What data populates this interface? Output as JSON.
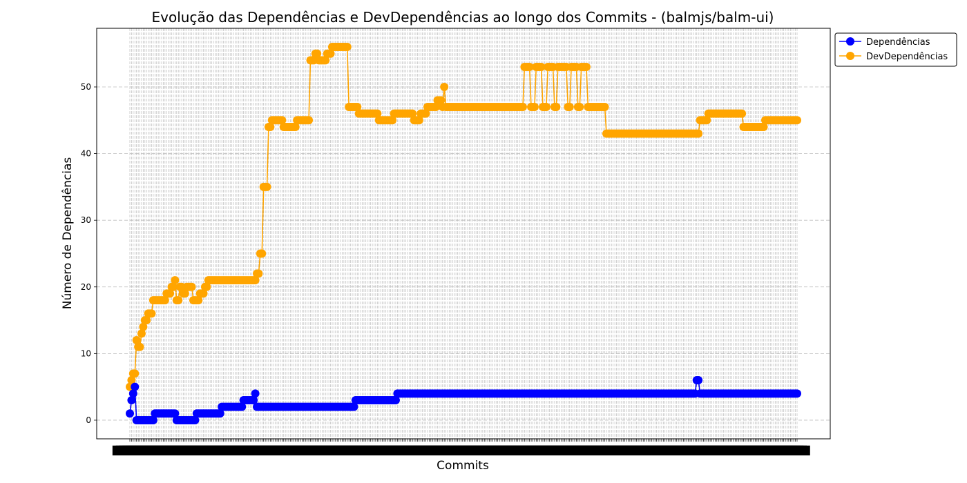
{
  "chart_data": {
    "type": "line",
    "title": "Evolução das Dependências e DevDependências ao longo dos Commits - (balmjs/balm-ui)",
    "xlabel": "Commits",
    "ylabel": "Número de Dependências",
    "ylim": [
      -2.8,
      58.8
    ],
    "yticks": [
      0,
      10,
      20,
      30,
      40,
      50
    ],
    "xtick_labels": "overlapping commit hash labels (illegible)",
    "grid": true,
    "legend_position": "top-right (outside plot)",
    "n_commits": 400,
    "series": [
      {
        "name": "Dependências",
        "color": "#0000ff",
        "marker": "circle",
        "segments": [
          [
            0,
            1
          ],
          [
            1,
            3
          ],
          [
            2,
            4
          ],
          [
            3,
            5
          ],
          [
            4,
            0
          ],
          [
            15,
            1
          ],
          [
            28,
            0
          ],
          [
            35,
            0
          ],
          [
            40,
            1
          ],
          [
            50,
            1
          ],
          [
            55,
            2
          ],
          [
            68,
            3
          ],
          [
            75,
            4
          ],
          [
            76,
            2
          ],
          [
            85,
            2
          ],
          [
            95,
            2
          ],
          [
            105,
            2
          ],
          [
            115,
            2
          ],
          [
            125,
            2
          ],
          [
            135,
            3
          ],
          [
            145,
            3
          ],
          [
            155,
            3
          ],
          [
            160,
            4
          ],
          [
            200,
            4
          ],
          [
            250,
            4
          ],
          [
            300,
            4
          ],
          [
            339,
            6
          ],
          [
            340,
            6
          ],
          [
            341,
            4
          ],
          [
            399,
            4
          ]
        ]
      },
      {
        "name": "DevDependências",
        "color": "#ffa500",
        "marker": "circle",
        "segments": [
          [
            0,
            5
          ],
          [
            1,
            6
          ],
          [
            2,
            7
          ],
          [
            3,
            7
          ],
          [
            4,
            12
          ],
          [
            5,
            11
          ],
          [
            7,
            13
          ],
          [
            8,
            14
          ],
          [
            9,
            15
          ],
          [
            11,
            16
          ],
          [
            14,
            18
          ],
          [
            22,
            19
          ],
          [
            25,
            20
          ],
          [
            27,
            21
          ],
          [
            28,
            18
          ],
          [
            30,
            20
          ],
          [
            32,
            19
          ],
          [
            34,
            20
          ],
          [
            38,
            18
          ],
          [
            42,
            19
          ],
          [
            45,
            20
          ],
          [
            47,
            21
          ],
          [
            60,
            21
          ],
          [
            70,
            21
          ],
          [
            76,
            22
          ],
          [
            78,
            25
          ],
          [
            80,
            35
          ],
          [
            83,
            44
          ],
          [
            85,
            45
          ],
          [
            92,
            44
          ],
          [
            100,
            45
          ],
          [
            108,
            54
          ],
          [
            111,
            55
          ],
          [
            113,
            54
          ],
          [
            118,
            55
          ],
          [
            121,
            56
          ],
          [
            131,
            47
          ],
          [
            137,
            46
          ],
          [
            149,
            45
          ],
          [
            158,
            46
          ],
          [
            170,
            45
          ],
          [
            174,
            46
          ],
          [
            178,
            47
          ],
          [
            184,
            48
          ],
          [
            187,
            47
          ],
          [
            188,
            50
          ],
          [
            189,
            47
          ],
          [
            200,
            47
          ],
          [
            225,
            47
          ],
          [
            235,
            47
          ],
          [
            236,
            53
          ],
          [
            240,
            47
          ],
          [
            243,
            53
          ],
          [
            247,
            47
          ],
          [
            250,
            53
          ],
          [
            254,
            47
          ],
          [
            256,
            53
          ],
          [
            262,
            47
          ],
          [
            264,
            53
          ],
          [
            268,
            47
          ],
          [
            270,
            53
          ],
          [
            274,
            47
          ],
          [
            285,
            43
          ],
          [
            340,
            43
          ],
          [
            341,
            45
          ],
          [
            346,
            46
          ],
          [
            367,
            44
          ],
          [
            380,
            45
          ],
          [
            399,
            45
          ]
        ]
      }
    ]
  }
}
